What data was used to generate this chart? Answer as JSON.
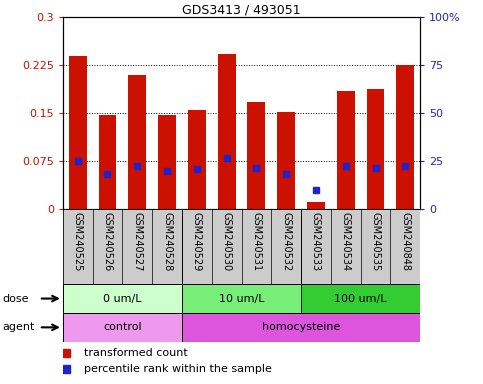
{
  "title": "GDS3413 / 493051",
  "samples": [
    "GSM240525",
    "GSM240526",
    "GSM240527",
    "GSM240528",
    "GSM240529",
    "GSM240530",
    "GSM240531",
    "GSM240532",
    "GSM240533",
    "GSM240534",
    "GSM240535",
    "GSM240848"
  ],
  "transformed_count": [
    0.24,
    0.148,
    0.21,
    0.148,
    0.155,
    0.242,
    0.168,
    0.152,
    0.012,
    0.185,
    0.188,
    0.225
  ],
  "percentile_rank_left": [
    0.075,
    0.055,
    0.068,
    0.06,
    0.063,
    0.08,
    0.065,
    0.055,
    0.03,
    0.068,
    0.065,
    0.068
  ],
  "ylim_left": [
    0,
    0.3
  ],
  "yticks_left": [
    0,
    0.075,
    0.15,
    0.225,
    0.3
  ],
  "ytick_labels_left": [
    "0",
    "0.075",
    "0.15",
    "0.225",
    "0.3"
  ],
  "yticks_right": [
    0,
    25,
    50,
    75,
    100
  ],
  "ytick_labels_right": [
    "0",
    "25",
    "50",
    "75",
    "100%"
  ],
  "bar_color": "#cc1100",
  "marker_color": "#2222cc",
  "dose_groups": [
    {
      "label": "0 um/L",
      "start": 0,
      "end": 4,
      "color": "#ccffcc"
    },
    {
      "label": "10 um/L",
      "start": 4,
      "end": 8,
      "color": "#77ee77"
    },
    {
      "label": "100 um/L",
      "start": 8,
      "end": 12,
      "color": "#33cc33"
    }
  ],
  "agent_groups": [
    {
      "label": "control",
      "start": 0,
      "end": 4,
      "color": "#ee99ee"
    },
    {
      "label": "homocysteine",
      "start": 4,
      "end": 12,
      "color": "#dd55dd"
    }
  ],
  "sample_bg_color": "#cccccc",
  "sample_border_color": "#888888",
  "dose_label": "dose",
  "agent_label": "agent",
  "legend1_color": "#cc1100",
  "legend1": "transformed count",
  "legend2_color": "#2222cc",
  "legend2": "percentile rank within the sample",
  "left_axis_color": "#cc1100",
  "right_axis_color": "#2222cc",
  "fig_width": 4.83,
  "fig_height": 3.84,
  "dpi": 100
}
